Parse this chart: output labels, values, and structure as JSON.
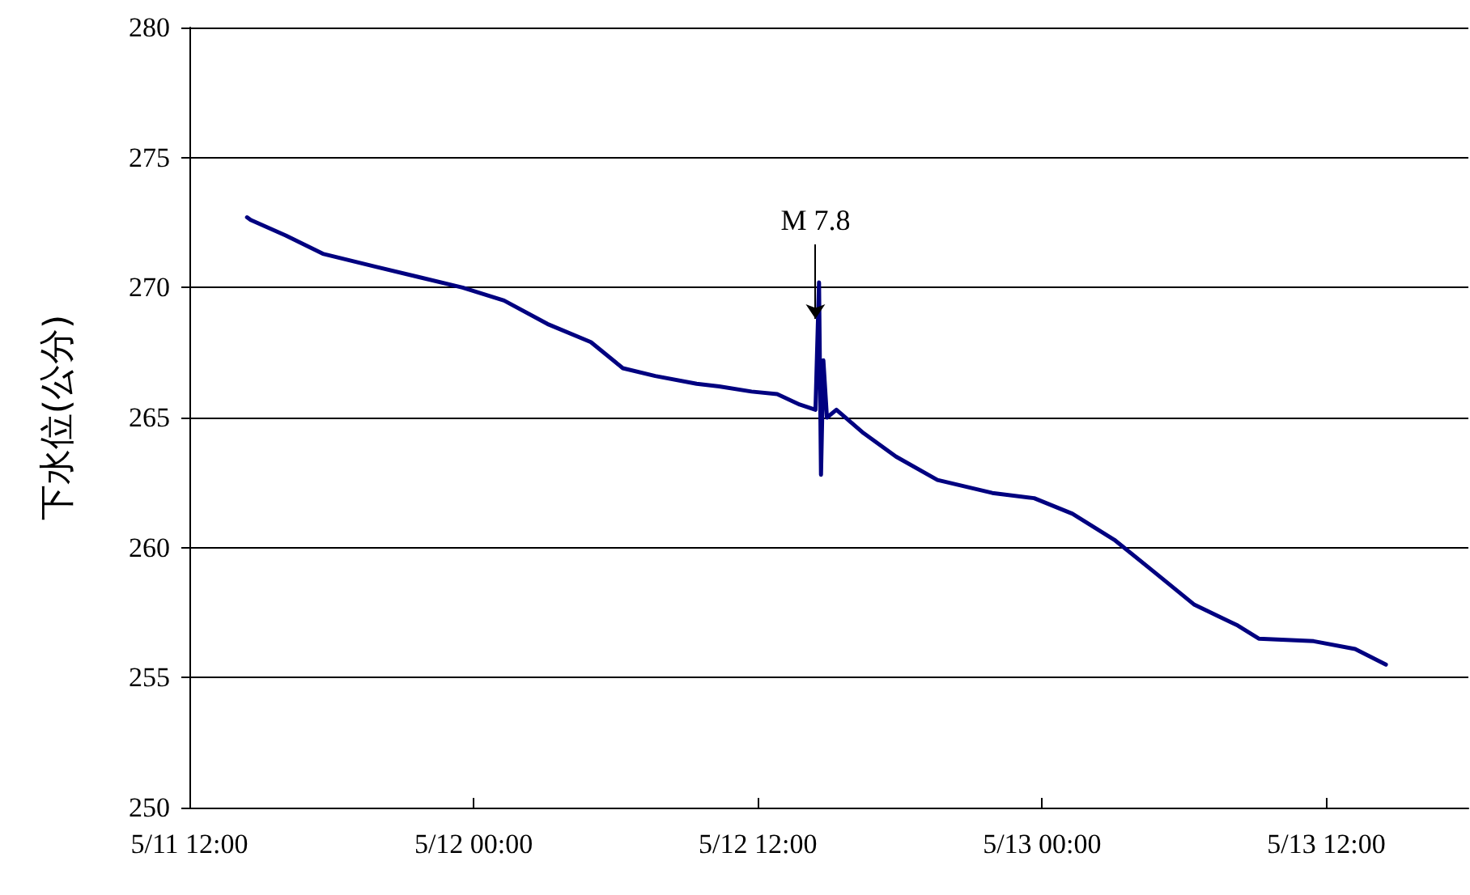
{
  "chart_data": {
    "type": "line",
    "ylabel": "下水位(公分)",
    "annotations": [
      {
        "text": "M 7.8",
        "x": "--05-12T14:26",
        "y": 268.8
      }
    ],
    "x": [
      "--05-11T14:26",
      "--05-11T14:35",
      "--05-11T16:04",
      "--05-11T17:38",
      "--05-11T19:52",
      "--05-11T21:42",
      "--05-11T23:32",
      "--05-12T01:17",
      "--05-12T03:07",
      "--05-12T04:57",
      "--05-12T06:18",
      "--05-12T07:40",
      "--05-12T09:25",
      "--05-12T10:22",
      "--05-12T11:44",
      "--05-12T12:49",
      "--05-12T13:46",
      "--05-12T14:26",
      "--05-12T14:35",
      "--05-12T14:40",
      "--05-12T14:46",
      "--05-12T14:55",
      "--05-12T15:19",
      "--05-12T16:28",
      "--05-12T17:50",
      "--05-12T19:35",
      "--05-12T21:54",
      "--05-12T23:40",
      "--05-13T01:17",
      "--05-13T03:03",
      "--05-13T04:41",
      "--05-13T06:26",
      "--05-13T08:16",
      "--05-13T09:09",
      "--05-13T11:28",
      "--05-13T13:13",
      "--05-13T14:31"
    ],
    "series": [
      {
        "color": "#000080",
        "values": [
          272.7,
          272.6,
          272.0,
          271.3,
          270.8,
          270.4,
          270.0,
          269.5,
          268.6,
          267.9,
          266.9,
          266.6,
          266.3,
          266.2,
          266.0,
          265.9,
          265.5,
          265.3,
          270.2,
          262.8,
          267.2,
          265.0,
          265.3,
          264.4,
          263.5,
          262.6,
          262.1,
          261.9,
          261.3,
          260.3,
          259.1,
          257.8,
          257.0,
          256.5,
          256.4,
          256.1,
          255.5
        ]
      }
    ],
    "xlim": [
      "--05-11T12:00",
      "--05-13T18:00"
    ],
    "xticks": [
      {
        "value": "--05-11T12:00",
        "label": "5/11 12:00"
      },
      {
        "value": "--05-12T00:00",
        "label": "5/12 00:00"
      },
      {
        "value": "--05-12T12:00",
        "label": "5/12 12:00"
      },
      {
        "value": "--05-13T00:00",
        "label": "5/13 00:00"
      },
      {
        "value": "--05-13T12:00",
        "label": "5/13 12:00"
      }
    ],
    "ylim": [
      250,
      280
    ],
    "yticks": [
      250,
      255,
      260,
      265,
      270,
      275,
      280
    ],
    "grid": "y",
    "marker": "none",
    "line_style": "solid"
  }
}
